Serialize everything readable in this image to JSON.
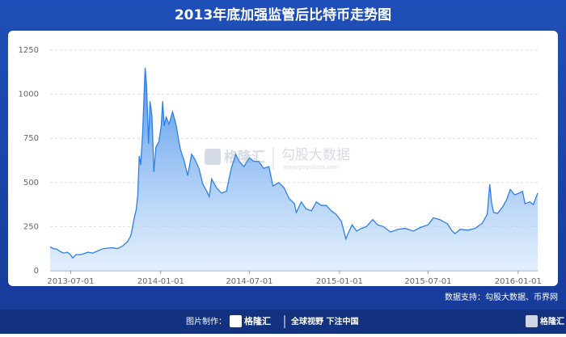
{
  "chart_data": {
    "type": "area",
    "title": "2013年底加强监管后比特币走势图",
    "color": "#2f80e6",
    "x": [
      "2013-05-20",
      "2013-05-27",
      "2013-06-03",
      "2013-06-10",
      "2013-06-17",
      "2013-06-24",
      "2013-07-01",
      "2013-07-05",
      "2013-07-12",
      "2013-07-19",
      "2013-07-26",
      "2013-08-05",
      "2013-08-15",
      "2013-08-25",
      "2013-09-05",
      "2013-09-15",
      "2013-09-25",
      "2013-10-05",
      "2013-10-15",
      "2013-10-25",
      "2013-11-01",
      "2013-11-08",
      "2013-11-12",
      "2013-11-15",
      "2013-11-18",
      "2013-11-21",
      "2013-11-25",
      "2013-11-30",
      "2013-12-03",
      "2013-12-07",
      "2013-12-10",
      "2013-12-14",
      "2013-12-18",
      "2013-12-22",
      "2013-12-28",
      "2014-01-02",
      "2014-01-05",
      "2014-01-08",
      "2014-01-12",
      "2014-01-18",
      "2014-01-25",
      "2014-02-01",
      "2014-02-06",
      "2014-02-10",
      "2014-02-18",
      "2014-02-25",
      "2014-03-05",
      "2014-03-12",
      "2014-03-20",
      "2014-03-28",
      "2014-04-05",
      "2014-04-10",
      "2014-04-15",
      "2014-04-25",
      "2014-05-05",
      "2014-05-15",
      "2014-05-25",
      "2014-06-03",
      "2014-06-10",
      "2014-06-20",
      "2014-07-01",
      "2014-07-10",
      "2014-07-20",
      "2014-07-30",
      "2014-08-10",
      "2014-08-18",
      "2014-08-30",
      "2014-09-10",
      "2014-09-20",
      "2014-10-01",
      "2014-10-05",
      "2014-10-15",
      "2014-10-25",
      "2014-11-05",
      "2014-11-15",
      "2014-11-25",
      "2014-12-05",
      "2014-12-15",
      "2014-12-25",
      "2015-01-05",
      "2015-01-14",
      "2015-01-20",
      "2015-01-27",
      "2015-02-05",
      "2015-02-15",
      "2015-02-25",
      "2015-03-10",
      "2015-03-20",
      "2015-04-01",
      "2015-04-15",
      "2015-05-01",
      "2015-05-15",
      "2015-06-01",
      "2015-06-15",
      "2015-07-01",
      "2015-07-12",
      "2015-07-25",
      "2015-08-10",
      "2015-08-18",
      "2015-08-25",
      "2015-09-05",
      "2015-09-20",
      "2015-10-05",
      "2015-10-20",
      "2015-10-30",
      "2015-11-04",
      "2015-11-08",
      "2015-11-12",
      "2015-11-20",
      "2015-11-30",
      "2015-12-08",
      "2015-12-16",
      "2015-12-25",
      "2016-01-03",
      "2016-01-10",
      "2016-01-15",
      "2016-01-25",
      "2016-02-01",
      "2016-02-10"
    ],
    "values": [
      135,
      125,
      122,
      108,
      100,
      105,
      90,
      72,
      92,
      90,
      95,
      105,
      100,
      112,
      125,
      128,
      130,
      125,
      140,
      165,
      200,
      300,
      350,
      430,
      650,
      600,
      780,
      1150,
      1050,
      720,
      960,
      880,
      560,
      700,
      730,
      820,
      960,
      820,
      870,
      830,
      900,
      830,
      750,
      690,
      620,
      540,
      660,
      630,
      580,
      490,
      450,
      420,
      520,
      470,
      440,
      450,
      580,
      660,
      620,
      590,
      640,
      620,
      620,
      580,
      590,
      480,
      500,
      470,
      410,
      380,
      330,
      390,
      350,
      340,
      390,
      370,
      370,
      340,
      320,
      280,
      180,
      220,
      260,
      225,
      240,
      250,
      290,
      260,
      250,
      220,
      235,
      240,
      225,
      245,
      260,
      300,
      290,
      265,
      230,
      210,
      235,
      230,
      240,
      270,
      320,
      490,
      380,
      330,
      325,
      360,
      400,
      460,
      430,
      440,
      450,
      380,
      390,
      375,
      440
    ],
    "xlim": [
      "2013-05-20",
      "2016-02-10"
    ],
    "xticks": [
      "2013-07-01",
      "2014-01-01",
      "2014-07-01",
      "2015-01-01",
      "2015-07-01",
      "2016-01-01"
    ],
    "ylim": [
      0,
      1250
    ],
    "yticks": [
      0,
      250,
      500,
      750,
      1000,
      1250
    ],
    "grid": true,
    "source": "数据支持：勾股大数据、币界网"
  },
  "watermark": {
    "brand": "格隆汇",
    "name": "勾股大数据",
    "url": "www.gogudata.com"
  },
  "footer": {
    "made_by": "图片制作：",
    "brand": "格隆汇",
    "slogan": "全球视野 下注中国",
    "logo": "格隆汇"
  }
}
